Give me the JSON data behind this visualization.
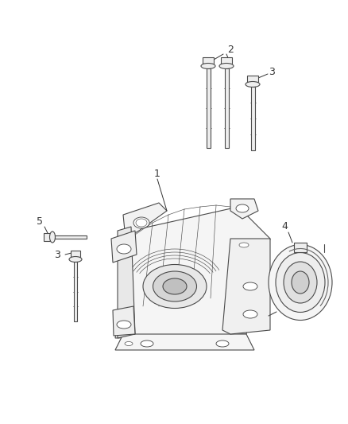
{
  "bg_color": "#ffffff",
  "line_color": "#4a4a4a",
  "label_color": "#333333",
  "figsize": [
    4.38,
    5.33
  ],
  "dpi": 100,
  "lw": 0.8,
  "lw_thin": 0.45,
  "fs_label": 9
}
